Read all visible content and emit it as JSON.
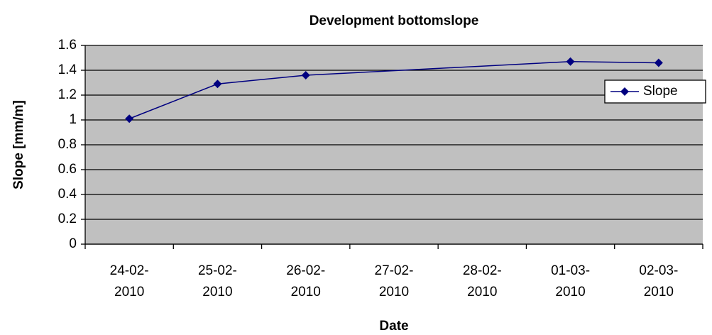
{
  "chart_data": {
    "type": "line",
    "title": "Development bottomslope",
    "x_label": "Date",
    "y_label": "Slope [mm/m]",
    "x": [
      "24-02-2010",
      "25-02-2010",
      "26-02-2010",
      "01-03-2010",
      "02-03-2010"
    ],
    "xticks": [
      "24-02-2010",
      "25-02-2010",
      "26-02-2010",
      "27-02-2010",
      "28-02-2010",
      "01-03-2010",
      "02-03-2010"
    ],
    "series": [
      {
        "name": "Slope",
        "color": "#000080",
        "values": [
          1.01,
          1.29,
          1.36,
          1.47,
          1.46
        ]
      }
    ],
    "ylim": [
      0,
      1.6
    ],
    "yticks": [
      0,
      0.2,
      0.4,
      0.6,
      0.8,
      1,
      1.2,
      1.4,
      1.6
    ],
    "grid": true,
    "legend": "right",
    "plot_background": "#c0c0c0"
  }
}
